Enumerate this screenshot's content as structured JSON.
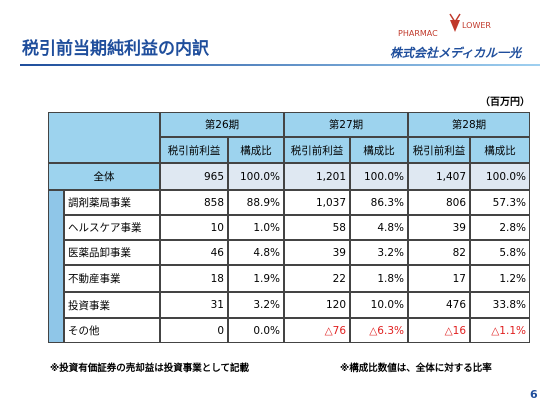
{
  "header": {
    "title": "税引前当期純利益の内訳",
    "logo_left": "PHARMAC",
    "logo_right": "LOWER",
    "company": "株式会社メディカル一光"
  },
  "unit": "（百万円）",
  "table": {
    "periods": [
      "第26期",
      "第27期",
      "第28期"
    ],
    "subheaders": [
      "税引前利益",
      "構成比",
      "税引前利益",
      "構成比",
      "税引前利益",
      "構成比"
    ],
    "rows": [
      [
        "全体",
        "965",
        "100.0%",
        "1,201",
        "100.0%",
        "1,407",
        "100.0%"
      ],
      [
        "調剤薬局事業",
        "858",
        "88.9%",
        "1,037",
        "86.3%",
        "806",
        "57.3%"
      ],
      [
        "ヘルスケア事業",
        "10",
        "1.0%",
        "58",
        "4.8%",
        "39",
        "2.8%"
      ],
      [
        "医薬品卸事業",
        "46",
        "4.8%",
        "39",
        "3.2%",
        "82",
        "5.8%"
      ],
      [
        "不動産事業",
        "18",
        "1.9%",
        "22",
        "1.8%",
        "17",
        "1.2%"
      ],
      [
        "投資事業",
        "31",
        "3.2%",
        "120",
        "10.0%",
        "476",
        "33.8%"
      ],
      [
        "その他",
        "0",
        "0.0%",
        "△76",
        "△6.3%",
        "△16",
        "△1.1%"
      ]
    ]
  },
  "notes": [
    "※投資有価証券の売却益は投資事業として記載",
    "※構成比数値は、全体に対する比率"
  ],
  "page_number": "6"
}
